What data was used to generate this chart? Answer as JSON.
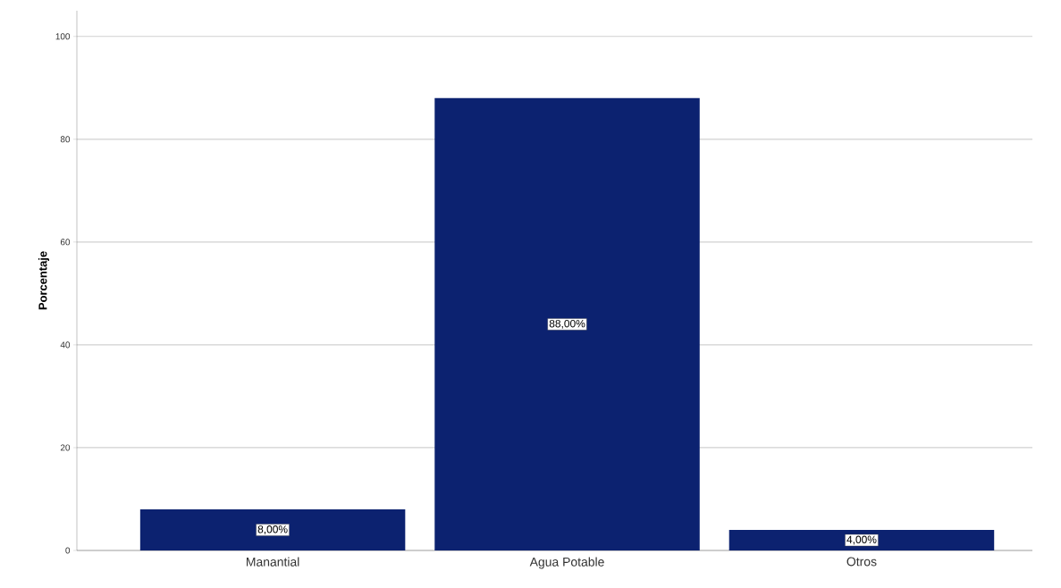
{
  "chart_data": {
    "type": "bar",
    "ylabel": "Porcentaje",
    "categories": [
      "Manantial",
      "Agua Potable",
      "Otros"
    ],
    "values": [
      8,
      88,
      4
    ],
    "value_labels": [
      "8,00%",
      "88,00%",
      "4,00%"
    ],
    "color": "#0c2270",
    "ylim": [
      0,
      105
    ],
    "yticks": [
      0,
      20,
      40,
      60,
      80,
      100
    ],
    "grid": "y"
  }
}
